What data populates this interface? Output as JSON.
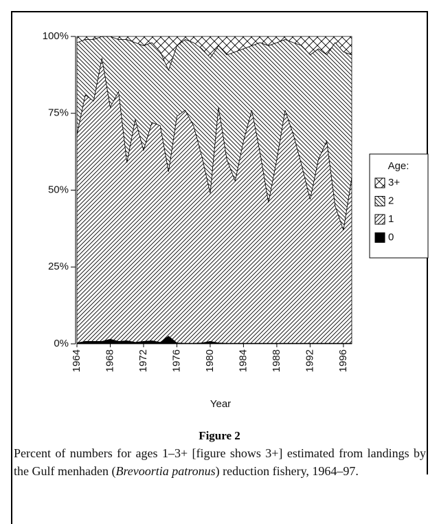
{
  "chart_data": {
    "type": "stacked-area",
    "x": [
      1964,
      1965,
      1966,
      1967,
      1968,
      1969,
      1970,
      1971,
      1972,
      1973,
      1974,
      1975,
      1976,
      1977,
      1978,
      1979,
      1980,
      1981,
      1982,
      1983,
      1984,
      1985,
      1986,
      1987,
      1988,
      1989,
      1990,
      1991,
      1992,
      1993,
      1994,
      1995,
      1996,
      1997
    ],
    "series": [
      {
        "name": "0",
        "color": "#000000",
        "pattern": "solid",
        "values": [
          0.3,
          0.8,
          0.8,
          0.8,
          1.5,
          0.8,
          1,
          0.5,
          0.8,
          1,
          0.5,
          2.5,
          0.3,
          0.2,
          0.2,
          0.3,
          0.8,
          0.3,
          0.2,
          0.2,
          0.2,
          0.2,
          0.2,
          0.2,
          0.2,
          0.2,
          0.2,
          0.2,
          0.2,
          0.2,
          0.2,
          0.2,
          0.2,
          0.2
        ]
      },
      {
        "name": "1",
        "color": "#000000",
        "pattern": "slash",
        "values": [
          67.7,
          80.2,
          78.2,
          92.2,
          75.5,
          81.2,
          58,
          72.5,
          62.2,
          71,
          70.5,
          53.5,
          73.7,
          75.8,
          70.8,
          60.7,
          48.2,
          76.7,
          59.8,
          52.8,
          65.8,
          75.8,
          61.8,
          45.8,
          59.8,
          75.8,
          67.8,
          57.8,
          46.8,
          59.8,
          65.8,
          44.8,
          36.8,
          53.8
        ]
      },
      {
        "name": "2",
        "color": "#000000",
        "pattern": "backslash",
        "values": [
          30,
          18,
          20,
          7,
          23,
          17,
          40,
          25,
          34,
          26,
          24,
          33,
          23,
          23,
          27,
          35,
          44,
          20,
          34,
          42,
          30,
          21,
          36,
          51,
          38,
          23,
          30,
          39,
          47,
          36,
          28,
          53,
          58,
          40
        ]
      },
      {
        "name": "3+",
        "color": "#000000",
        "pattern": "crosshatch",
        "values": [
          2,
          1,
          1,
          0,
          0,
          1,
          1,
          2,
          3,
          2,
          5,
          11,
          3,
          1,
          2,
          4,
          7,
          3,
          6,
          5,
          4,
          3,
          2,
          3,
          2,
          1,
          2,
          3,
          6,
          4,
          6,
          2,
          5,
          6
        ]
      }
    ],
    "xlim": [
      1964,
      1997
    ],
    "xticks": [
      1964,
      1968,
      1972,
      1976,
      1980,
      1984,
      1988,
      1992,
      1996
    ],
    "ylim": [
      0,
      100
    ],
    "yticks": [
      {
        "value": 0,
        "label": "0%"
      },
      {
        "value": 25,
        "label": "25%"
      },
      {
        "value": 50,
        "label": "50%"
      },
      {
        "value": 75,
        "label": "75%"
      },
      {
        "value": 100,
        "label": "100%"
      }
    ],
    "x_label": "Year",
    "legend_title": "Age:",
    "legend": "right"
  },
  "caption": {
    "title": "Figure 2",
    "text": [
      "Percent of numbers for ages 1–3+ [figure shows 3+] estimated from landings by the Gulf menhaden (",
      "Brevoortia patronus",
      ") reduction fishery, 1964–97."
    ]
  }
}
